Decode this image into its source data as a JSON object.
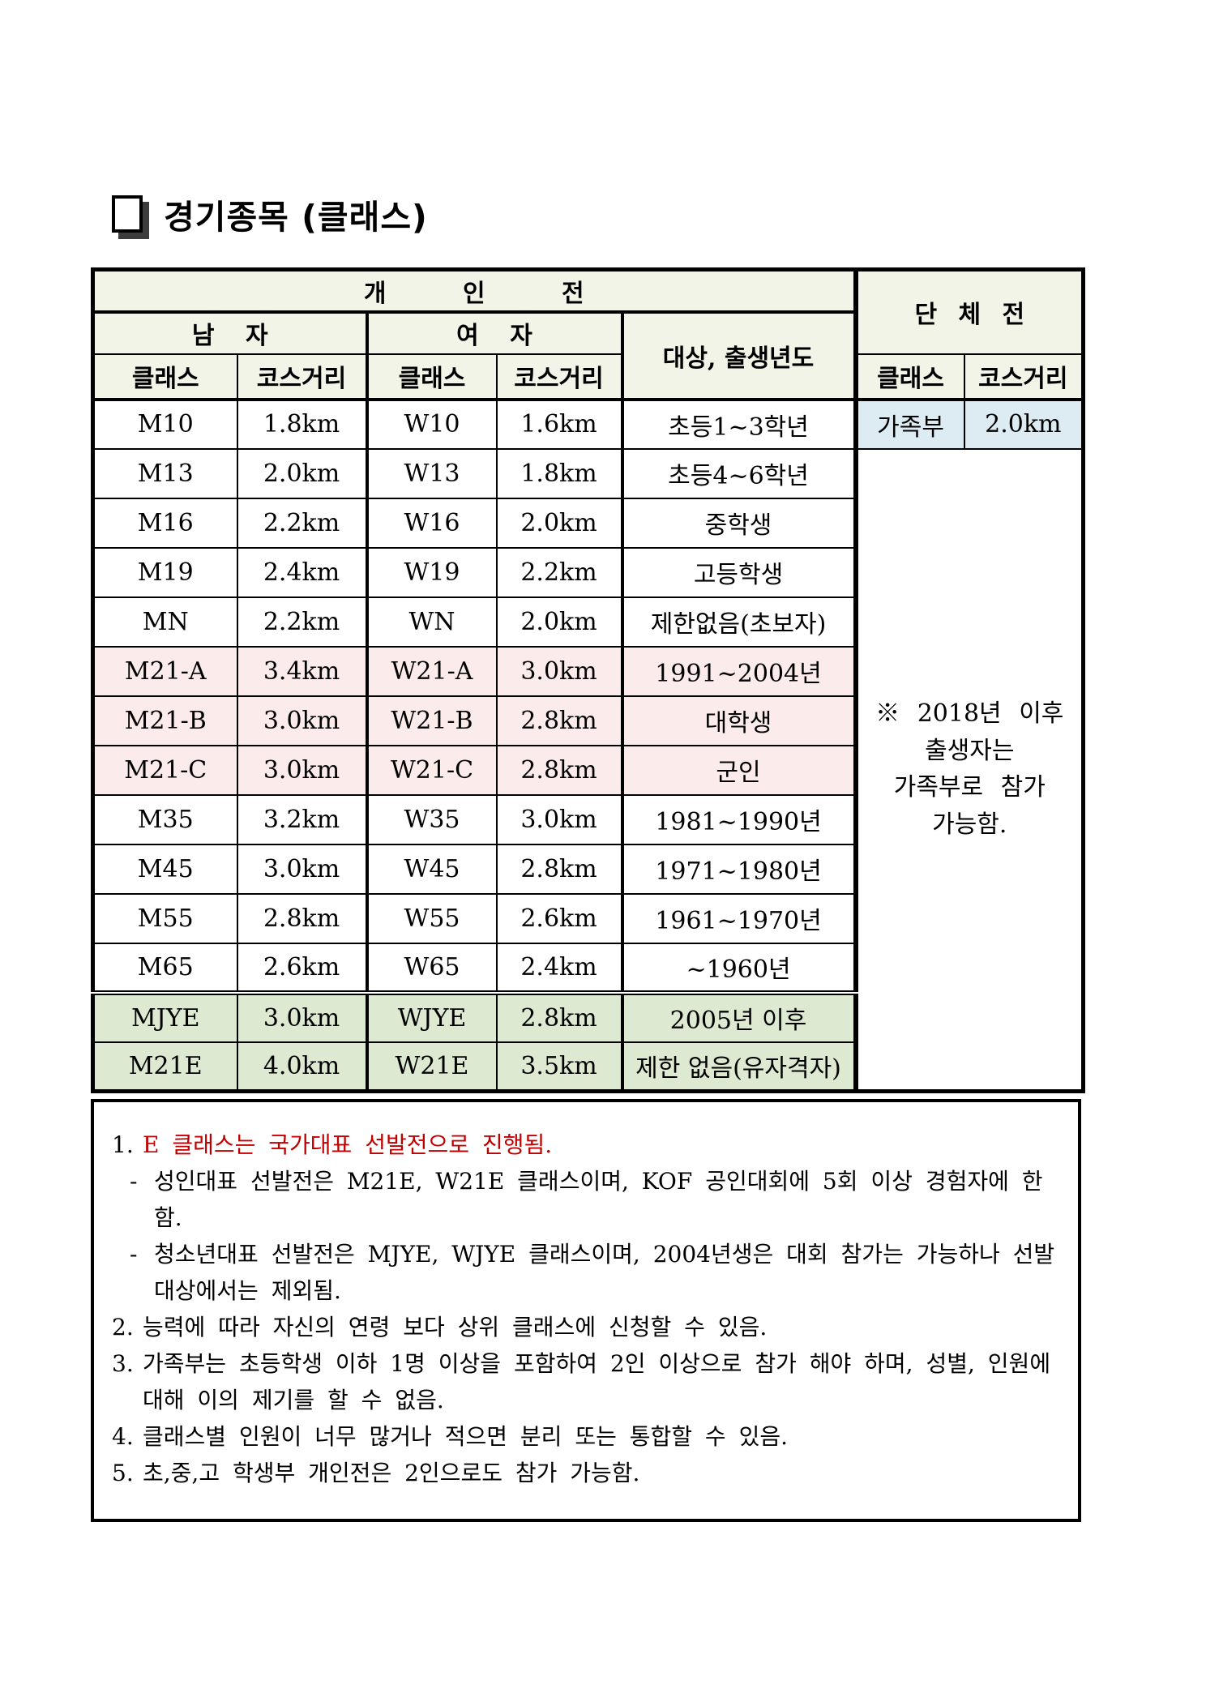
{
  "colors": {
    "header-bg": "#f1f4e6",
    "team-first-row-bg": "#dcecf2",
    "pink-row-bg": "#fbeceb",
    "green-row-bg": "#dde9d0",
    "note-red": "#c00000",
    "border-black": "#000000"
  },
  "title": {
    "text": "경기종목 (클래스)"
  },
  "table": {
    "headers": {
      "individual": "개 인 전",
      "male": "남 자",
      "female": "여 자",
      "target": "대상, 출생년도",
      "team": "단 체 전",
      "class": "클래스",
      "distance": "코스거리"
    },
    "rows": [
      {
        "m_class": "M10",
        "m_dist": "1.8km",
        "w_class": "W10",
        "w_dist": "1.6km",
        "target": "초등1~3학년",
        "bg": "white"
      },
      {
        "m_class": "M13",
        "m_dist": "2.0km",
        "w_class": "W13",
        "w_dist": "1.8km",
        "target": "초등4~6학년",
        "bg": "white"
      },
      {
        "m_class": "M16",
        "m_dist": "2.2km",
        "w_class": "W16",
        "w_dist": "2.0km",
        "target": "중학생",
        "bg": "white"
      },
      {
        "m_class": "M19",
        "m_dist": "2.4km",
        "w_class": "W19",
        "w_dist": "2.2km",
        "target": "고등학생",
        "bg": "white"
      },
      {
        "m_class": "MN",
        "m_dist": "2.2km",
        "w_class": "WN",
        "w_dist": "2.0km",
        "target": "제한없음(초보자)",
        "bg": "white"
      },
      {
        "m_class": "M21-A",
        "m_dist": "3.4km",
        "w_class": "W21-A",
        "w_dist": "3.0km",
        "target": "1991~2004년",
        "bg": "pink"
      },
      {
        "m_class": "M21-B",
        "m_dist": "3.0km",
        "w_class": "W21-B",
        "w_dist": "2.8km",
        "target": "대학생",
        "bg": "pink"
      },
      {
        "m_class": "M21-C",
        "m_dist": "3.0km",
        "w_class": "W21-C",
        "w_dist": "2.8km",
        "target": "군인",
        "bg": "pink"
      },
      {
        "m_class": "M35",
        "m_dist": "3.2km",
        "w_class": "W35",
        "w_dist": "3.0km",
        "target": "1981~1990년",
        "bg": "white"
      },
      {
        "m_class": "M45",
        "m_dist": "3.0km",
        "w_class": "W45",
        "w_dist": "2.8km",
        "target": "1971~1980년",
        "bg": "white"
      },
      {
        "m_class": "M55",
        "m_dist": "2.8km",
        "w_class": "W55",
        "w_dist": "2.6km",
        "target": "1961~1970년",
        "bg": "white"
      },
      {
        "m_class": "M65",
        "m_dist": "2.6km",
        "w_class": "W65",
        "w_dist": "2.4km",
        "target": "~1960년",
        "bg": "white"
      },
      {
        "m_class": "MJYE",
        "m_dist": "3.0km",
        "w_class": "WJYE",
        "w_dist": "2.8km",
        "target": "2005년 이후",
        "bg": "green"
      },
      {
        "m_class": "M21E",
        "m_dist": "4.0km",
        "w_class": "W21E",
        "w_dist": "3.5km",
        "target": "제한 없음(유자격자)",
        "bg": "green"
      }
    ],
    "team_row": {
      "class": "가족부",
      "dist": "2.0km"
    },
    "team_note": "※ 2018년 이후\n출생자는\n가족부로 참가\n가능함."
  },
  "notes": {
    "items": [
      {
        "num": "1.",
        "text": "E 클래스는 국가대표 선발전으로 진행됨.",
        "red": true
      },
      {
        "num": "2.",
        "text": "능력에 따라 자신의 연령 보다 상위 클래스에 신청할 수 있음."
      },
      {
        "num": "3.",
        "text": "가족부는 초등학생 이하 1명 이상을 포함하여 2인 이상으로 참가 해야 하며, 성별, 인원에 대해 이의 제기를 할 수 없음."
      },
      {
        "num": "4.",
        "text": "클래스별 인원이 너무 많거나 적으면 분리 또는 통합할 수 있음."
      },
      {
        "num": "5.",
        "text": "초,중,고 학생부 개인전은 2인으로도 참가 가능함."
      }
    ],
    "sub_items": [
      {
        "dash": "-",
        "text": "성인대표 선발전은 M21E, W21E 클래스이며, KOF 공인대회에 5회 이상 경험자에 한함."
      },
      {
        "dash": "-",
        "text": "청소년대표 선발전은 MJYE, WJYE 클래스이며, 2004년생은 대회 참가는 가능하나 선발대상에서는 제외됨."
      }
    ]
  }
}
